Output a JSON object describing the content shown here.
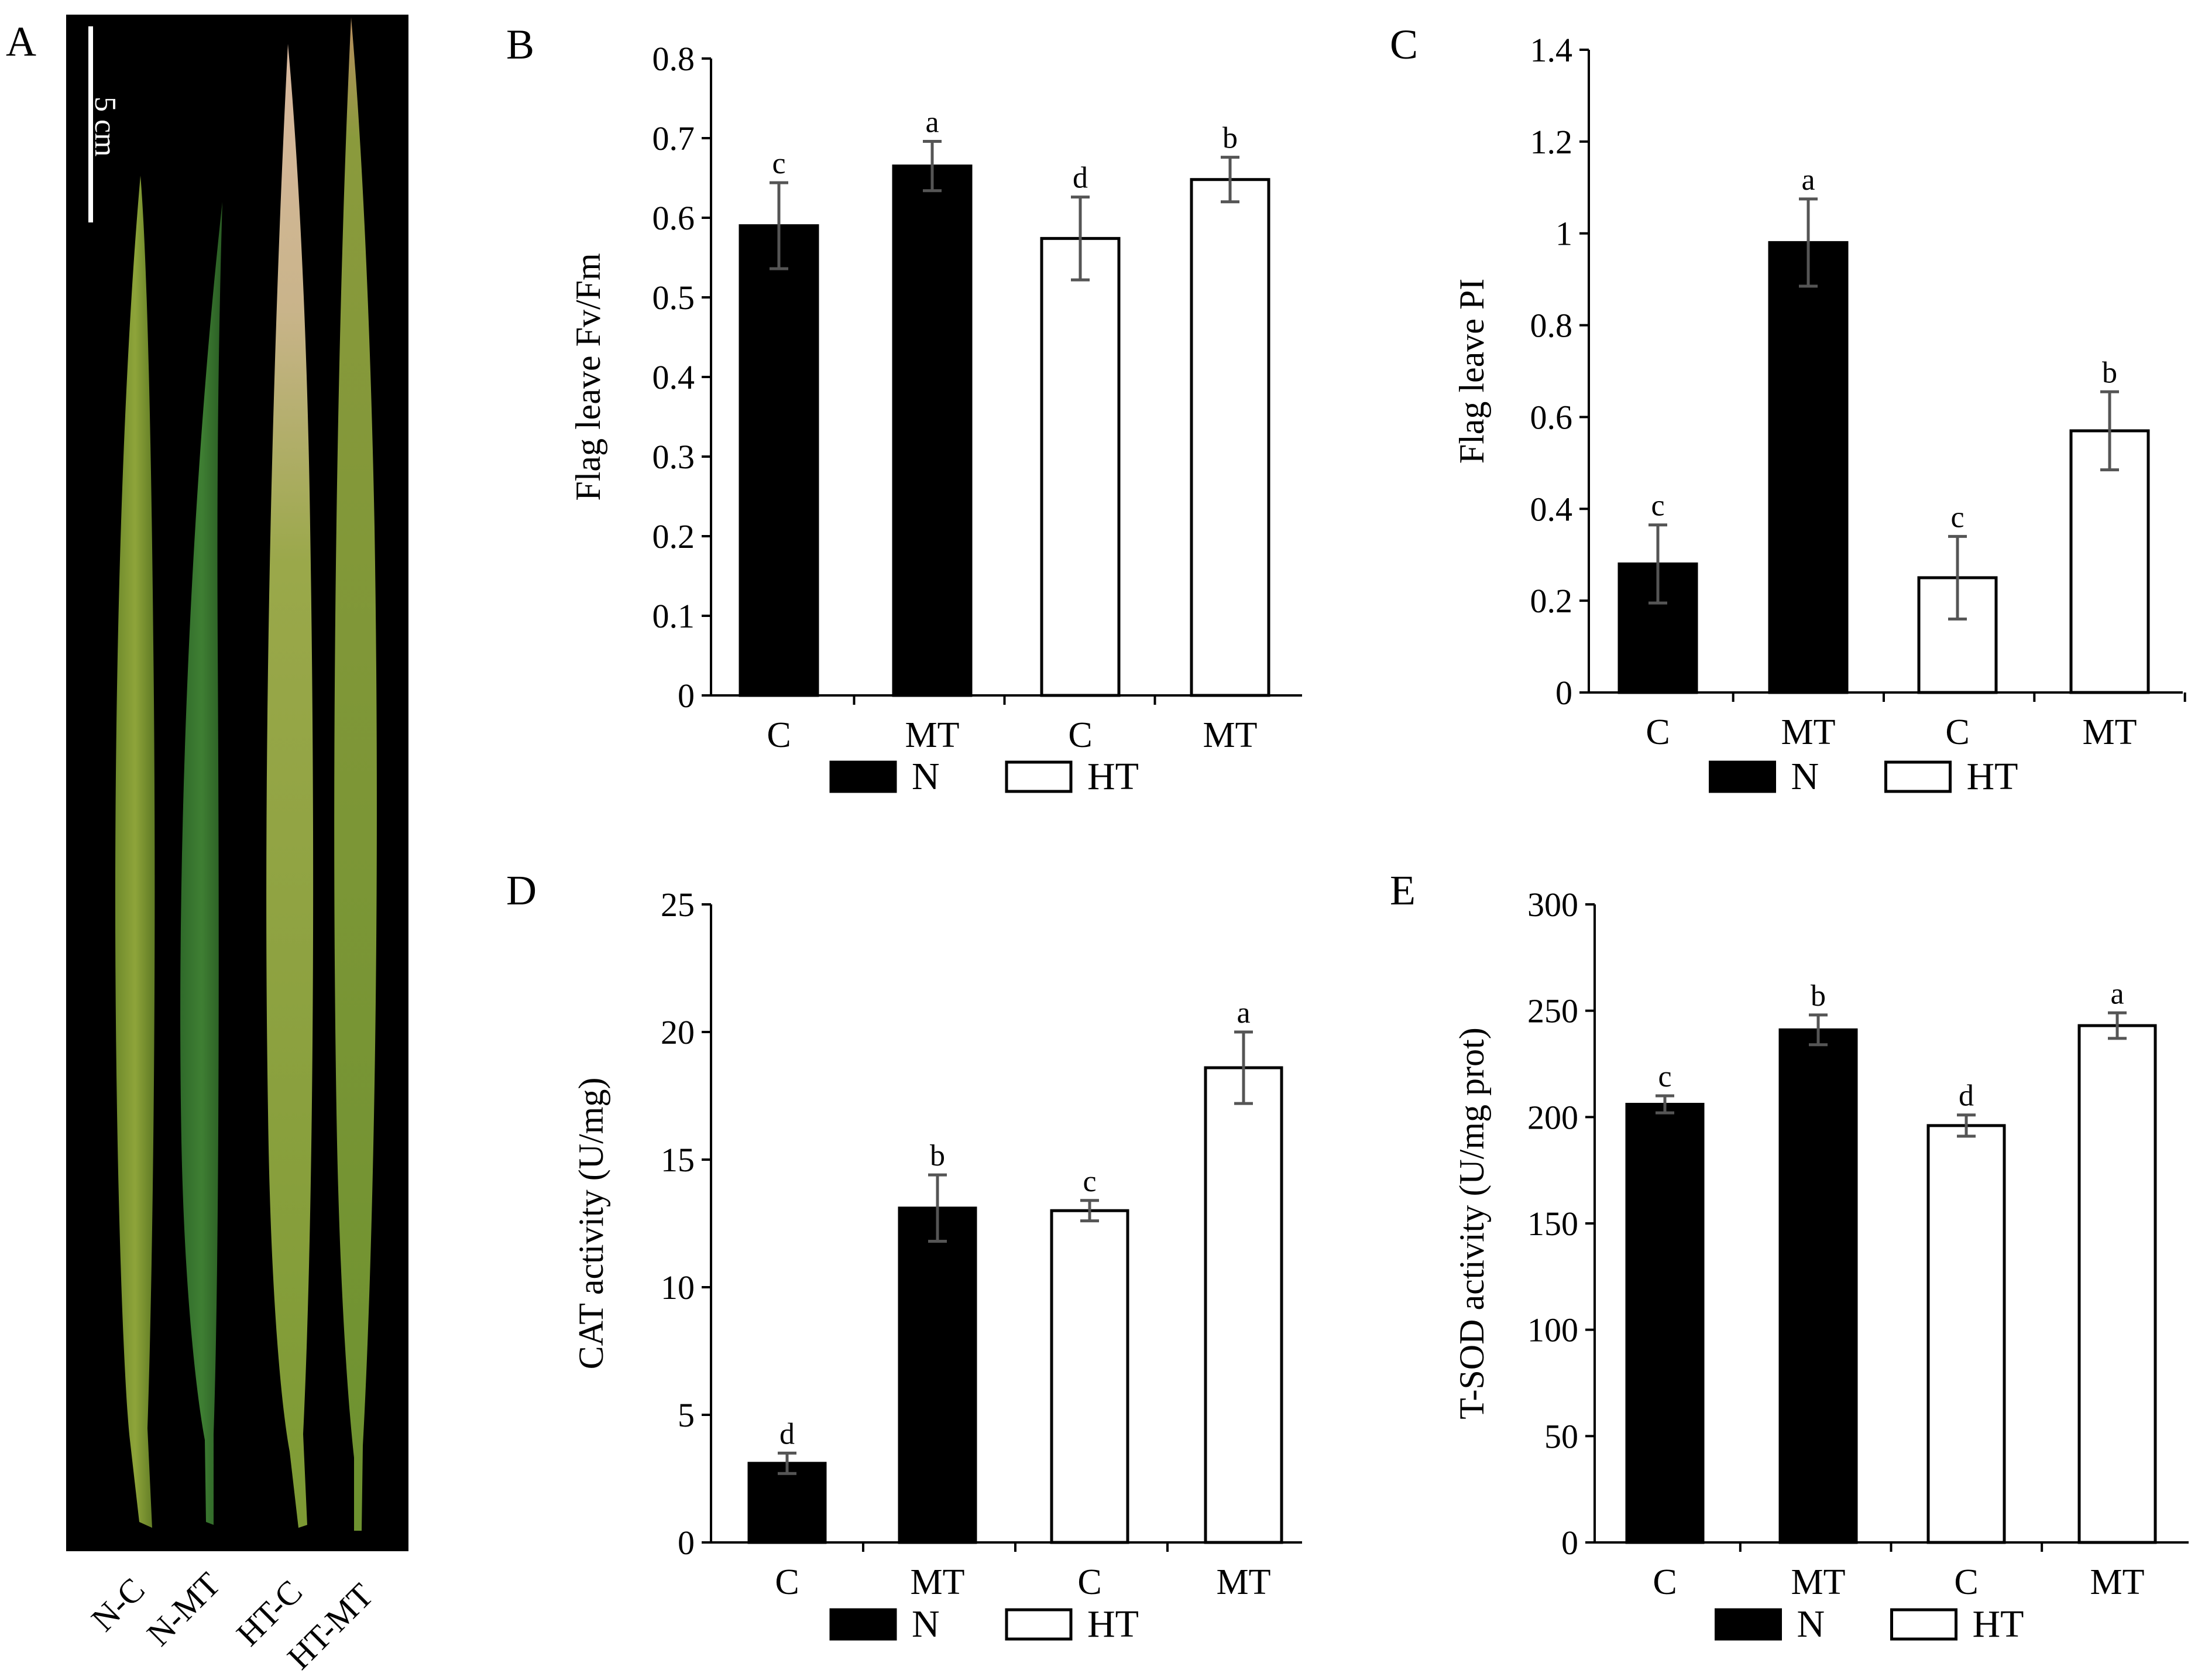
{
  "figure": {
    "panel_a": {
      "letter": "A",
      "scale_label": "5 cm",
      "leaf_labels": [
        "N-C",
        "N-MT",
        "HT-C",
        "HT-MT"
      ]
    }
  },
  "legend": [
    {
      "name": "N",
      "color": "#000000"
    },
    {
      "name": "HT",
      "color": "#ffffff"
    }
  ],
  "chart_data": [
    {
      "panel": "B",
      "type": "bar",
      "categories": [
        "C",
        "MT",
        "C",
        "MT"
      ],
      "groups": [
        "N",
        "N",
        "HT",
        "HT"
      ],
      "values": [
        0.59,
        0.665,
        0.574,
        0.648
      ],
      "errors": [
        0.054,
        0.031,
        0.052,
        0.028
      ],
      "letters": [
        "c",
        "a",
        "d",
        "b"
      ],
      "ylabel": "Flag leave Fv/Fm",
      "ylim": [
        0,
        0.8
      ],
      "yticks": [
        "0",
        "0.1",
        "0.2",
        "0.3",
        "0.4",
        "0.5",
        "0.6",
        "0.7",
        "0.8"
      ]
    },
    {
      "panel": "C",
      "type": "bar",
      "categories": [
        "C",
        "MT",
        "C",
        "MT"
      ],
      "groups": [
        "N",
        "N",
        "HT",
        "HT"
      ],
      "values": [
        0.28,
        0.98,
        0.25,
        0.57
      ],
      "errors": [
        0.085,
        0.095,
        0.09,
        0.085
      ],
      "letters": [
        "c",
        "a",
        "c",
        "b"
      ],
      "ylabel": "Flag leave PI",
      "ylim": [
        0,
        1.4
      ],
      "yticks": [
        "0",
        "0.2",
        "0.4",
        "0.6",
        "0.8",
        "1",
        "1.2",
        "1.4"
      ]
    },
    {
      "panel": "D",
      "type": "bar",
      "categories": [
        "C",
        "MT",
        "C",
        "MT"
      ],
      "groups": [
        "N",
        "N",
        "HT",
        "HT"
      ],
      "values": [
        3.1,
        13.1,
        13.0,
        18.6
      ],
      "errors": [
        0.4,
        1.3,
        0.4,
        1.4
      ],
      "letters": [
        "d",
        "b",
        "c",
        "a"
      ],
      "ylabel": "CAT activity (U/mg)",
      "ylim": [
        0,
        25
      ],
      "yticks": [
        "0",
        "5",
        "10",
        "15",
        "20",
        "25"
      ]
    },
    {
      "panel": "E",
      "type": "bar",
      "categories": [
        "C",
        "MT",
        "C",
        "MT"
      ],
      "groups": [
        "N",
        "N",
        "HT",
        "HT"
      ],
      "values": [
        206,
        241,
        196,
        243
      ],
      "errors": [
        4,
        7,
        5,
        6
      ],
      "letters": [
        "c",
        "b",
        "d",
        "a"
      ],
      "ylabel": "T-SOD activity (U/mg prot)",
      "ylim": [
        0,
        300
      ],
      "yticks": [
        "0",
        "50",
        "100",
        "150",
        "200",
        "250",
        "300"
      ]
    }
  ]
}
